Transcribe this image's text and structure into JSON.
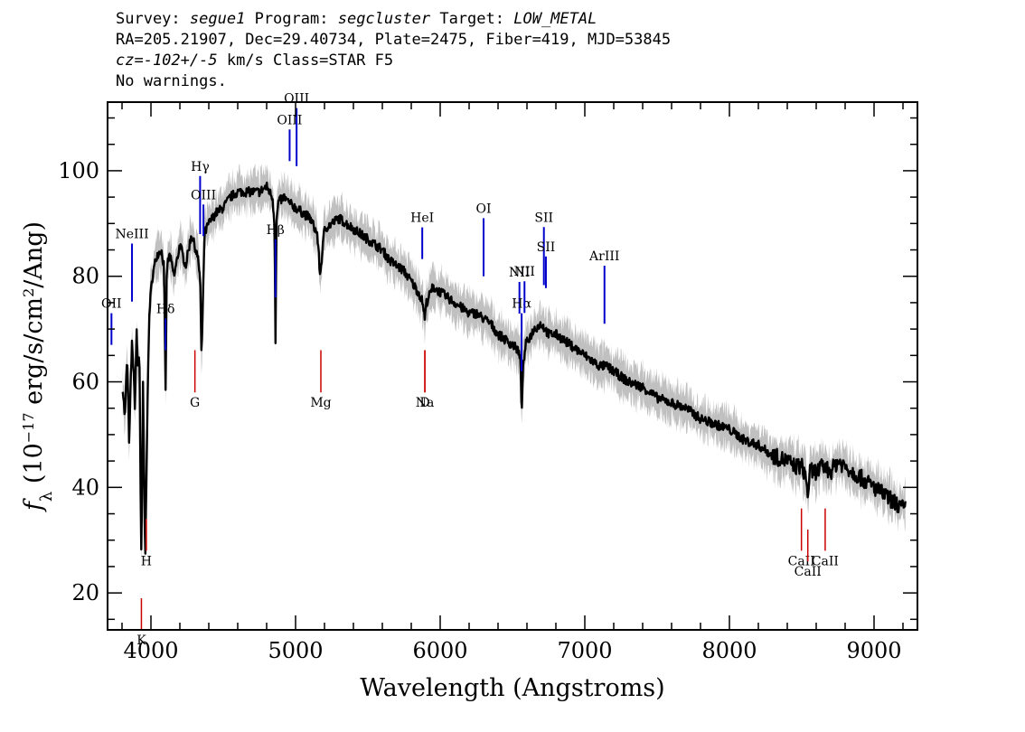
{
  "header": {
    "survey_label": "Survey:",
    "survey": "segue1",
    "program_label": "Program:",
    "program": "segcluster",
    "target_label": "Target:",
    "target": "LOW_METAL",
    "line2": "RA=205.21907, Dec=29.40734, Plate=2475, Fiber=419, MJD=53845",
    "cz": "cz=-102+/-5",
    "cz_rest": " km/s Class=STAR F5",
    "warnings": "No warnings."
  },
  "chart_data": {
    "type": "line",
    "xlabel": "Wavelength (Angstroms)",
    "ylabel": "f_λ (10^-17 erg/s/cm^2/Ang)",
    "xlim": [
      3700,
      9300
    ],
    "ylim": [
      13,
      113
    ],
    "xticks": [
      4000,
      5000,
      6000,
      7000,
      8000,
      9000
    ],
    "yticks": [
      20,
      40,
      60,
      80,
      100
    ],
    "grid": false,
    "legend": "none",
    "colors": {
      "flux": "#000000",
      "error": "#c0c0c0",
      "emission": "#0000cc",
      "absorption": "#cc0000"
    },
    "series": [
      {
        "x": [
          3805,
          3820,
          3835,
          3850,
          3860,
          3870,
          3890,
          3900,
          3910,
          3920,
          3930,
          3934,
          3945,
          3960,
          3968,
          3975,
          3990,
          4010,
          4040,
          4070,
          4090,
          4101,
          4110,
          4130,
          4160,
          4200,
          4240,
          4280,
          4300,
          4320,
          4340,
          4350,
          4370,
          4400,
          4450,
          4500,
          4550,
          4600,
          4650,
          4700,
          4750,
          4800,
          4840,
          4855,
          4861,
          4868,
          4880,
          4920,
          4950,
          5000,
          5050,
          5100,
          5150,
          5170,
          5183,
          5200,
          5250,
          5300,
          5350,
          5400,
          5450,
          5500,
          5550,
          5600,
          5650,
          5700,
          5750,
          5800,
          5850,
          5880,
          5893,
          5905,
          5950,
          6000,
          6050,
          6100,
          6150,
          6200,
          6250,
          6300,
          6350,
          6400,
          6450,
          6500,
          6540,
          6555,
          6563,
          6572,
          6590,
          6650,
          6700,
          6750,
          6800,
          6850,
          6900,
          6950,
          7000,
          7050,
          7100,
          7150,
          7200,
          7250,
          7300,
          7400,
          7500,
          7600,
          7700,
          7800,
          7900,
          8000,
          8100,
          8200,
          8300,
          8400,
          8450,
          8500,
          8530,
          8542,
          8555,
          8600,
          8650,
          8700,
          8750,
          8800,
          8850,
          8900,
          8950,
          9000,
          9050,
          9100,
          9150,
          9200,
          9220
        ],
        "y": [
          59,
          53,
          65,
          48,
          60,
          68,
          55,
          70,
          62,
          66,
          35,
          25,
          60,
          26,
          40,
          55,
          74,
          80,
          84,
          85,
          82,
          58,
          82,
          84,
          80,
          86,
          82,
          88,
          86,
          84,
          80,
          64,
          88,
          90,
          92,
          93,
          95,
          96,
          96,
          96,
          96,
          97,
          95,
          90,
          68,
          90,
          94,
          95,
          94,
          93,
          92,
          91,
          88,
          80,
          84,
          89,
          90,
          91,
          90,
          89,
          88,
          87,
          86,
          85,
          83,
          82,
          81,
          79,
          77,
          75,
          72,
          75,
          78,
          77,
          76,
          75,
          74,
          73,
          73,
          72,
          71,
          69,
          68,
          67,
          66,
          64,
          54,
          62,
          67,
          70,
          71,
          69,
          69,
          68,
          67,
          66,
          65,
          64,
          63,
          63,
          62,
          61,
          60,
          59,
          57,
          56,
          55,
          53,
          52,
          51,
          49,
          48,
          46,
          45,
          44,
          44,
          42,
          38,
          43,
          43,
          44,
          43,
          45,
          44,
          43,
          42,
          41,
          40,
          39,
          38,
          37,
          36,
          36
        ]
      }
    ],
    "emission_lines": [
      {
        "name": "OII",
        "x": 3727
      },
      {
        "name": "NeIII",
        "x": 3869
      },
      {
        "name": "Hδ",
        "x": 4101
      },
      {
        "name": "Hγ",
        "x": 4340
      },
      {
        "name": "OIII",
        "x": 4363
      },
      {
        "name": "Hβ",
        "x": 4861
      },
      {
        "name": "OIII",
        "x": 4959
      },
      {
        "name": "OIII",
        "x": 5007
      },
      {
        "name": "HeI",
        "x": 5876
      },
      {
        "name": "OI",
        "x": 6300
      },
      {
        "name": "NII",
        "x": 6548
      },
      {
        "name": "Hα",
        "x": 6563
      },
      {
        "name": "NII",
        "x": 6583
      },
      {
        "name": "SII",
        "x": 6717
      },
      {
        "name": "SII",
        "x": 6731
      },
      {
        "name": "ArIII",
        "x": 7136
      }
    ],
    "absorption_lines": [
      {
        "name": "K",
        "x": 3934
      },
      {
        "name": "H",
        "x": 3968
      },
      {
        "name": "G",
        "x": 4304
      },
      {
        "name": "Mg",
        "x": 5175
      },
      {
        "name": "Na",
        "x": 5894
      },
      {
        "name": "D",
        "x": 5894
      },
      {
        "name": "CaII",
        "x": 8498
      },
      {
        "name": "CaII",
        "x": 8542
      },
      {
        "name": "CaII",
        "x": 8662
      }
    ]
  }
}
